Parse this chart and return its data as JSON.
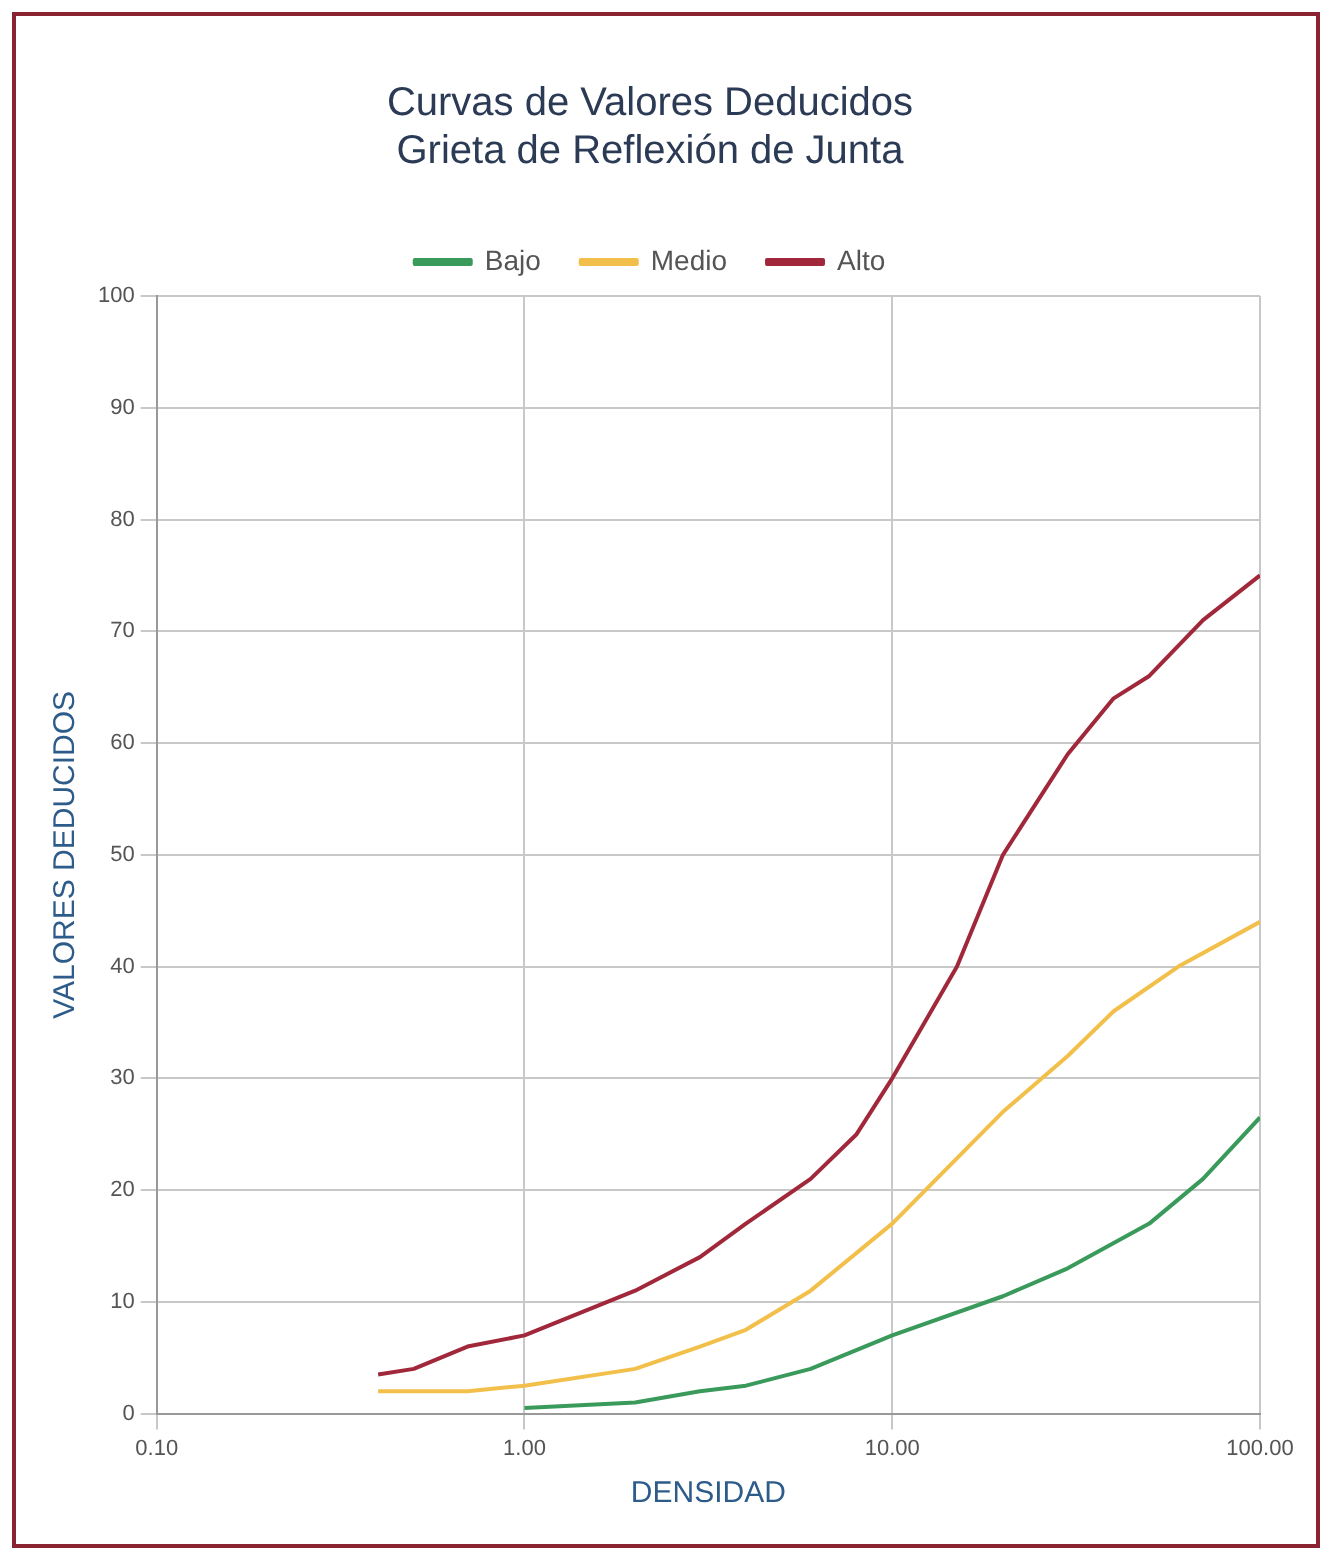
{
  "chart_data": {
    "type": "line",
    "title": "Curvas de Valores Deducidos\nGrieta de Reflexión de Junta",
    "xlabel": "DENSIDAD",
    "ylabel": "VALORES DEDUCIDOS",
    "log": "x",
    "grid": true,
    "legend": "top",
    "marker": "none",
    "line_style": "solid",
    "xlim": [
      0.1,
      100
    ],
    "xticks": [
      {
        "value": 0.1,
        "label": "0.10"
      },
      {
        "value": 1,
        "label": "1.00"
      },
      {
        "value": 10,
        "label": "10.00"
      },
      {
        "value": 100,
        "label": "100.00"
      }
    ],
    "ylim": [
      0,
      100
    ],
    "yticks": [
      0,
      10,
      20,
      30,
      40,
      50,
      60,
      70,
      80,
      90,
      100
    ],
    "series": [
      {
        "name": "Bajo",
        "color": "#3a9a5b",
        "x": [
          1,
          2,
          3,
          4,
          6,
          10,
          20,
          30,
          50,
          70,
          100
        ],
        "values": [
          0.5,
          1,
          2,
          2.5,
          4,
          7,
          10.5,
          13,
          17,
          21,
          26.5
        ]
      },
      {
        "name": "Medio",
        "color": "#f2c04a",
        "x": [
          0.4,
          0.7,
          1,
          2,
          3,
          4,
          6,
          10,
          20,
          30,
          40,
          60,
          100
        ],
        "values": [
          2,
          2,
          2.5,
          4,
          6,
          7.5,
          11,
          17,
          27,
          32,
          36,
          40,
          44
        ]
      },
      {
        "name": "Alto",
        "color": "#a0283a",
        "x": [
          0.4,
          0.5,
          0.7,
          1,
          2,
          3,
          4,
          6,
          8,
          10,
          15,
          20,
          30,
          40,
          50,
          70,
          100
        ],
        "values": [
          3.5,
          4,
          6,
          7,
          11,
          14,
          17,
          21,
          25,
          30,
          40,
          50,
          59,
          64,
          66,
          71,
          75
        ]
      }
    ]
  }
}
